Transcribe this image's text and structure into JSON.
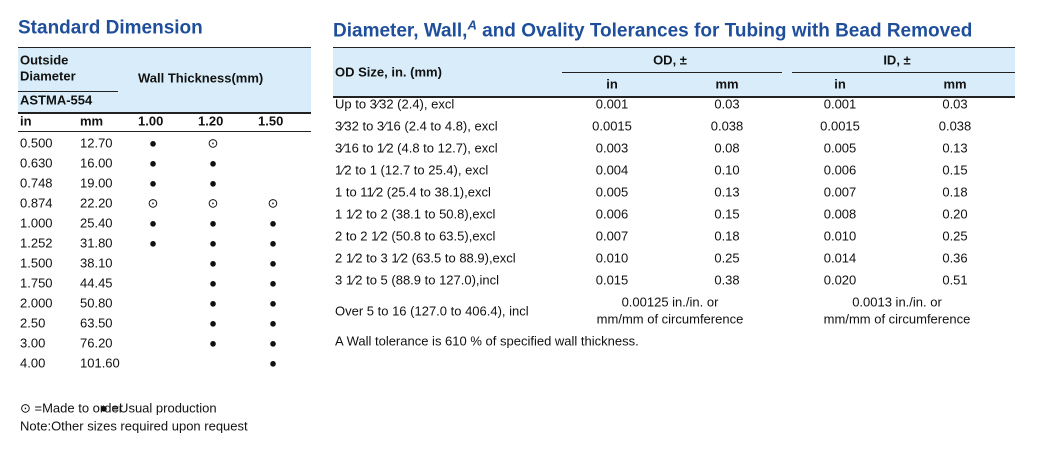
{
  "left": {
    "title": "Standard Dimension",
    "header": {
      "outside_diameter": [
        "Outside",
        "Diameter"
      ],
      "wall_thickness": "Wall Thickness(mm)",
      "standard": "ASTMA-554",
      "columns": [
        "in",
        "mm",
        "1.00",
        "1.20",
        "1.50"
      ]
    },
    "rows": [
      [
        "0.500",
        "12.70",
        "●",
        "⊙",
        null
      ],
      [
        "0.630",
        "16.00",
        "●",
        "●",
        null
      ],
      [
        "0.748",
        "19.00",
        "●",
        "●",
        null
      ],
      [
        "0.874",
        "22.20",
        "⊙",
        "⊙",
        "⊙"
      ],
      [
        "1.000",
        "25.40",
        "●",
        "●",
        "●"
      ],
      [
        "1.252",
        "31.80",
        "●",
        "●",
        "●"
      ],
      [
        "1.500",
        "38.10",
        null,
        "●",
        "●"
      ],
      [
        "1.750",
        "44.45",
        null,
        "●",
        "●"
      ],
      [
        "2.000",
        "50.80",
        null,
        "●",
        "●"
      ],
      [
        "2.50",
        "63.50",
        null,
        "●",
        "●"
      ],
      [
        "3.00",
        "76.20",
        null,
        "●",
        "●"
      ],
      [
        "4.00",
        "101.60",
        null,
        null,
        "●"
      ]
    ],
    "legend": [
      "⊙ =Made to order",
      "● =Usual production"
    ],
    "note": "Note:Other sizes required upon request"
  },
  "right": {
    "title": {
      "before": "Diameter, Wall,",
      "mark": "A",
      "after": " and Ovality Tolerances for Tubing with Bead Removed"
    },
    "header": {
      "size": "OD Size, in. (mm)",
      "od": "OD, ±",
      "id": "ID, ±",
      "columns": [
        "in",
        "mm",
        "in",
        "mm"
      ]
    },
    "rows": [
      [
        "Up to 3⁄32 (2.4), excl",
        "0.001",
        "0.03",
        "0.001",
        "0.03"
      ],
      [
        "3⁄32 to 3⁄16 (2.4 to 4.8), excl",
        "0.0015",
        "0.038",
        "0.0015",
        "0.038"
      ],
      [
        "3⁄16 to 1⁄2 (4.8 to 12.7), excl",
        "0.003",
        "0.08",
        "0.005",
        "0.13"
      ],
      [
        "1⁄2 to 1 (12.7 to 25.4), excl",
        "0.004",
        "0.10",
        "0.006",
        "0.15"
      ],
      [
        "1 to 11⁄2 (25.4 to 38.1),excl",
        "0.005",
        "0.13",
        "0.007",
        "0.18"
      ],
      [
        "1 1⁄2 to 2 (38.1 to 50.8),excl",
        "0.006",
        "0.15",
        "0.008",
        "0.20"
      ],
      [
        "2 to 2 1⁄2 (50.8 to 63.5),excl",
        "0.007",
        "0.18",
        "0.010",
        "0.25"
      ],
      [
        "2 1⁄2 to 3 1⁄2 (63.5 to 88.9),excl",
        "0.010",
        "0.25",
        "0.014",
        "0.36"
      ],
      [
        "3 1⁄2 to 5 (88.9 to 127.0),incl",
        "0.015",
        "0.38",
        "0.020",
        "0.51"
      ]
    ],
    "over": {
      "size": "Over 5 to 16 (127.0 to 406.4), incl",
      "od": [
        "0.00125 in./in. or",
        "mm/mm of circumference"
      ],
      "id": [
        "0.0013 in./in. or",
        "mm/mm of circumference"
      ]
    },
    "footnote": "A Wall tolerance is 610 % of specified wall thickness."
  }
}
